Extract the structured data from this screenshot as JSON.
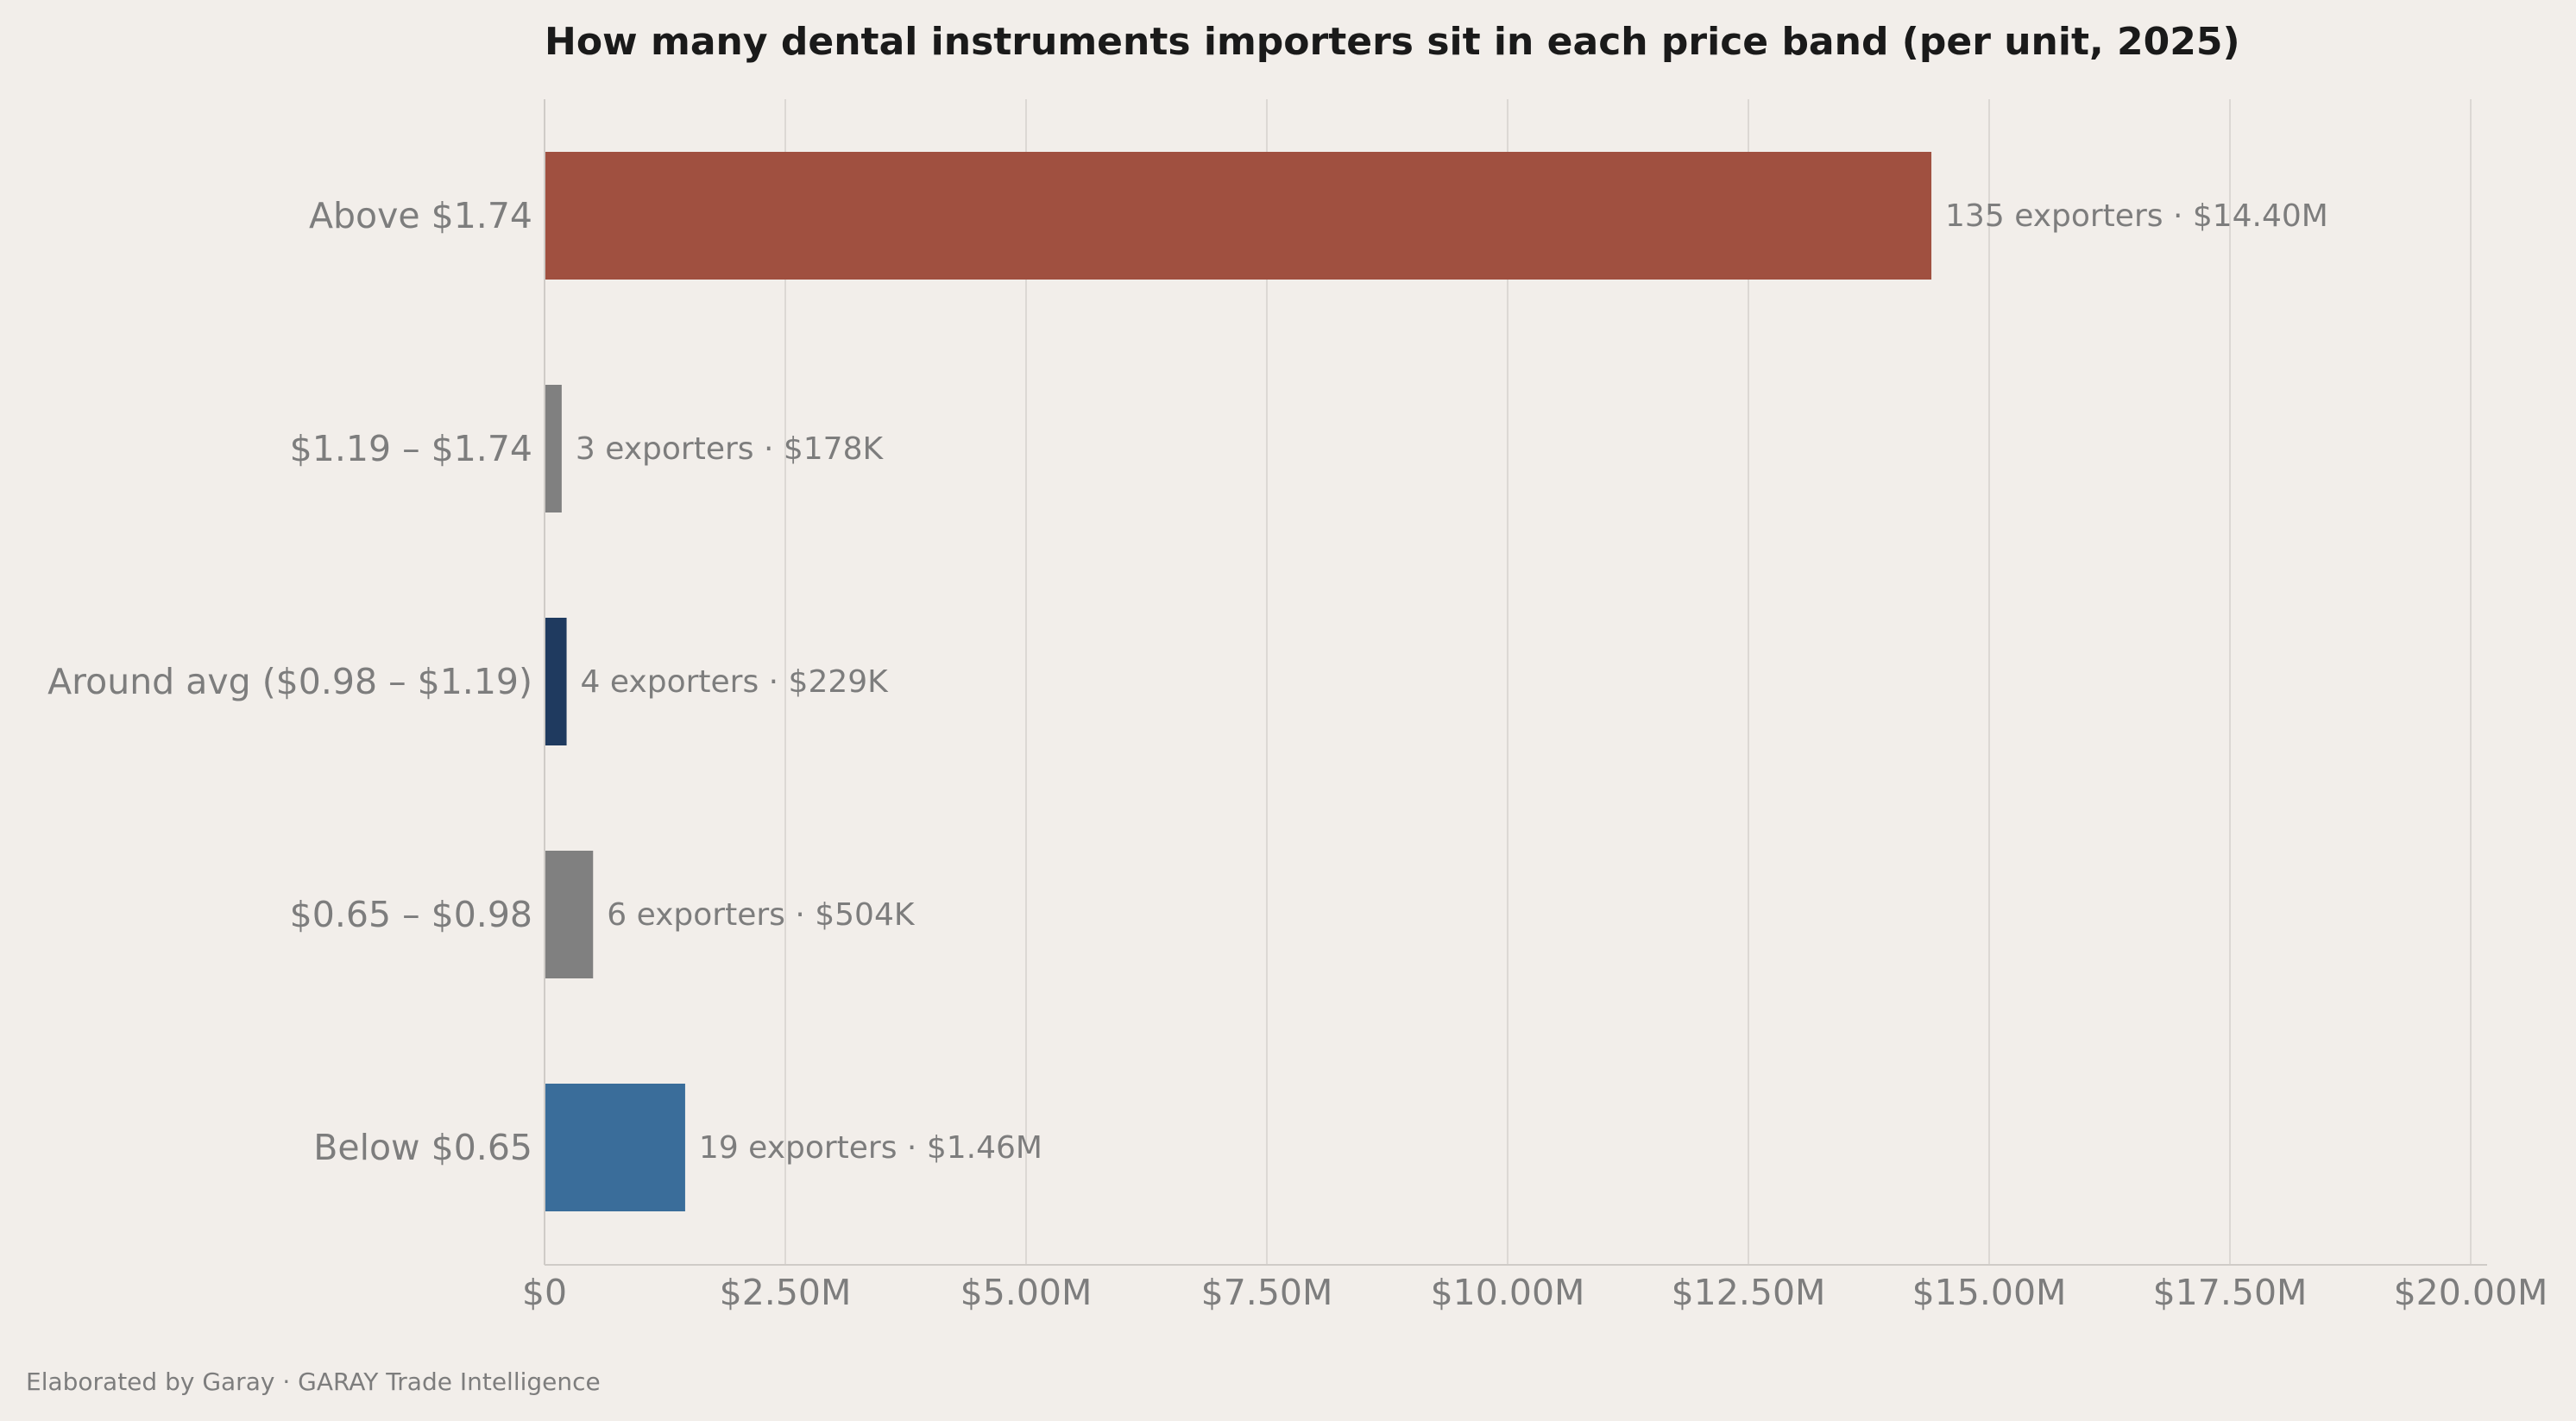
{
  "chart_data": {
    "type": "bar",
    "orientation": "horizontal",
    "title": "How many dental instruments importers sit in each price band (per unit, 2025)",
    "xlabel": "",
    "ylabel": "",
    "xlim": [
      0,
      20000000
    ],
    "grid": "vertical",
    "categories": [
      "Above $1.74",
      "$1.19 – $1.74",
      "Around avg ($0.98 – $1.19)",
      "$0.65 – $0.98",
      "Below $0.65"
    ],
    "values": [
      14400000,
      178000,
      229000,
      504000,
      1460000
    ],
    "bar_labels": [
      "135 exporters  ·  $14.40M",
      "3 exporters  ·  $178K",
      "4 exporters  ·  $229K",
      "6 exporters  ·  $504K",
      "19 exporters  ·  $1.46M"
    ],
    "colors": [
      "#a05040",
      "#808080",
      "#1f3a5f",
      "#808080",
      "#3a6d9a"
    ],
    "x_ticks": [
      0,
      2500000,
      5000000,
      7500000,
      10000000,
      12500000,
      15000000,
      17500000,
      20000000
    ],
    "x_tick_labels": [
      "$0",
      "$2.50M",
      "$5.00M",
      "$7.50M",
      "$10.00M",
      "$12.50M",
      "$15.00M",
      "$17.50M",
      "$20.00M"
    ]
  },
  "footer": "Elaborated by Garay  ·  GARAY Trade Intelligence"
}
